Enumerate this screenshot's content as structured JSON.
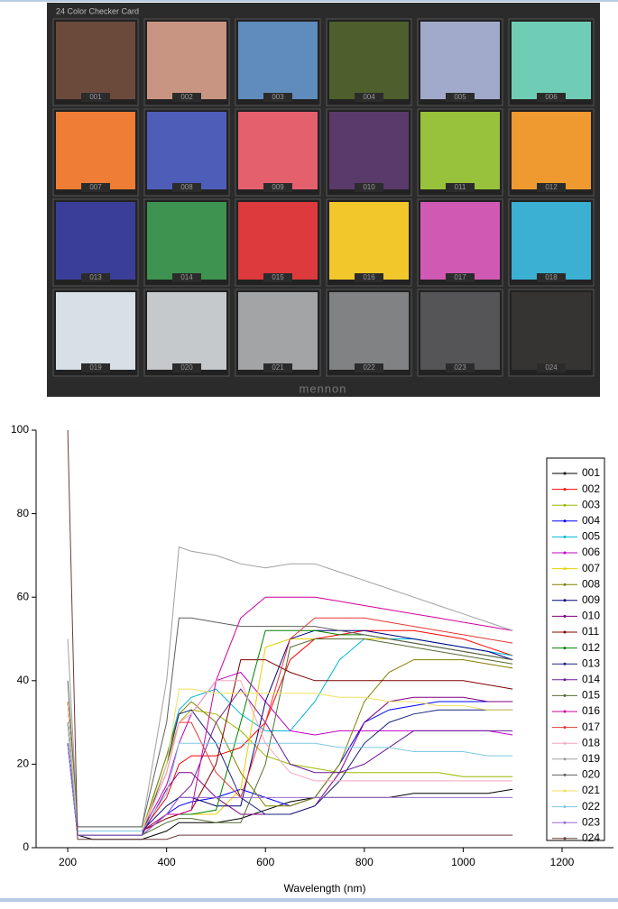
{
  "card": {
    "title": "24 Color Checker Card",
    "brand": "mennon",
    "patches": [
      {
        "label": "001",
        "color": "#6b4a3c"
      },
      {
        "label": "002",
        "color": "#c99583"
      },
      {
        "label": "003",
        "color": "#5f8bbd"
      },
      {
        "label": "004",
        "color": "#4e5e2c"
      },
      {
        "label": "005",
        "color": "#a2aacb"
      },
      {
        "label": "006",
        "color": "#6fcdb5"
      },
      {
        "label": "007",
        "color": "#ef7d35"
      },
      {
        "label": "008",
        "color": "#4e5eb8"
      },
      {
        "label": "009",
        "color": "#e4606c"
      },
      {
        "label": "010",
        "color": "#5a3a6a"
      },
      {
        "label": "011",
        "color": "#98c23c"
      },
      {
        "label": "012",
        "color": "#ef9a30"
      },
      {
        "label": "013",
        "color": "#3a3e98"
      },
      {
        "label": "014",
        "color": "#3e9350"
      },
      {
        "label": "015",
        "color": "#dc3a3c"
      },
      {
        "label": "016",
        "color": "#f1c72c"
      },
      {
        "label": "017",
        "color": "#d05ab3"
      },
      {
        "label": "018",
        "color": "#3bb0d2"
      },
      {
        "label": "019",
        "color": "#d8dfe6"
      },
      {
        "label": "020",
        "color": "#c6c9cc"
      },
      {
        "label": "021",
        "color": "#a3a4a6"
      },
      {
        "label": "022",
        "color": "#818284"
      },
      {
        "label": "023",
        "color": "#555557"
      },
      {
        "label": "024",
        "color": "#353432"
      }
    ]
  },
  "chart_data": {
    "type": "line",
    "x_label": "Wavelength (nm)",
    "x": [
      200,
      220,
      250,
      300,
      350,
      400,
      425,
      450,
      500,
      550,
      600,
      650,
      700,
      750,
      800,
      850,
      900,
      950,
      1000,
      1050,
      1100
    ],
    "xlim": [
      136,
      1304
    ],
    "xticks": [
      200,
      400,
      600,
      800,
      1000,
      1200
    ],
    "ylim": [
      0,
      100
    ],
    "yticks": [
      0,
      20,
      40,
      60,
      80,
      100
    ],
    "series": [
      {
        "name": "001",
        "color": "#000000",
        "values": [
          30,
          3,
          2,
          2,
          2,
          4,
          6,
          6,
          6,
          7,
          9,
          11,
          12,
          12,
          12,
          12,
          13,
          13,
          13,
          13,
          14
        ]
      },
      {
        "name": "002",
        "color": "#ff0000",
        "values": [
          35,
          4,
          4,
          4,
          4,
          12,
          20,
          22,
          22,
          24,
          30,
          45,
          50,
          51,
          52,
          52,
          52,
          51,
          50,
          48,
          46
        ]
      },
      {
        "name": "003",
        "color": "#9ab800",
        "values": [
          30,
          4,
          4,
          4,
          4,
          20,
          30,
          33,
          32,
          28,
          22,
          20,
          19,
          18,
          18,
          18,
          18,
          18,
          17,
          17,
          17
        ]
      },
      {
        "name": "004",
        "color": "#0000ff",
        "values": [
          25,
          3,
          3,
          3,
          3,
          8,
          10,
          11,
          12,
          14,
          12,
          10,
          12,
          20,
          30,
          33,
          34,
          35,
          35,
          35,
          35
        ]
      },
      {
        "name": "005",
        "color": "#00b4d8",
        "values": [
          30,
          4,
          4,
          4,
          4,
          22,
          33,
          36,
          38,
          32,
          28,
          28,
          35,
          45,
          50,
          50,
          50,
          49,
          48,
          47,
          46
        ]
      },
      {
        "name": "006",
        "color": "#c000c0",
        "values": [
          35,
          4,
          4,
          4,
          4,
          15,
          25,
          32,
          40,
          42,
          35,
          28,
          27,
          28,
          28,
          28,
          28,
          28,
          28,
          28,
          27
        ]
      },
      {
        "name": "007",
        "color": "#e8d000",
        "values": [
          30,
          4,
          4,
          4,
          4,
          8,
          8,
          8,
          8,
          14,
          48,
          50,
          50,
          50,
          50,
          50,
          49,
          48,
          47,
          46,
          45
        ]
      },
      {
        "name": "008",
        "color": "#808000",
        "values": [
          30,
          4,
          4,
          4,
          4,
          22,
          32,
          35,
          30,
          18,
          10,
          10,
          12,
          20,
          35,
          42,
          45,
          45,
          45,
          44,
          43
        ]
      },
      {
        "name": "009",
        "color": "#000080",
        "values": [
          35,
          4,
          4,
          4,
          4,
          10,
          12,
          12,
          10,
          10,
          35,
          50,
          52,
          52,
          52,
          51,
          50,
          49,
          48,
          47,
          45
        ]
      },
      {
        "name": "010",
        "color": "#800080",
        "values": [
          25,
          3,
          3,
          3,
          3,
          14,
          18,
          18,
          12,
          8,
          8,
          8,
          10,
          18,
          30,
          35,
          36,
          36,
          36,
          35,
          35
        ]
      },
      {
        "name": "011",
        "color": "#800000",
        "values": [
          30,
          4,
          4,
          4,
          4,
          7,
          8,
          9,
          20,
          45,
          45,
          42,
          40,
          40,
          40,
          40,
          40,
          40,
          40,
          39,
          38
        ]
      },
      {
        "name": "012",
        "color": "#008000",
        "values": [
          35,
          4,
          4,
          4,
          4,
          8,
          8,
          8,
          9,
          30,
          52,
          52,
          52,
          51,
          51,
          50,
          49,
          48,
          47,
          46,
          45
        ]
      },
      {
        "name": "013",
        "color": "#1a237e",
        "values": [
          25,
          3,
          3,
          3,
          3,
          20,
          32,
          33,
          25,
          12,
          8,
          8,
          10,
          16,
          25,
          30,
          32,
          33,
          33,
          33,
          33
        ]
      },
      {
        "name": "014",
        "color": "#6a1b9a",
        "values": [
          30,
          3,
          3,
          3,
          3,
          8,
          12,
          15,
          30,
          38,
          30,
          20,
          18,
          18,
          20,
          24,
          28,
          28,
          28,
          28,
          28
        ]
      },
      {
        "name": "015",
        "color": "#556b2f",
        "values": [
          30,
          3,
          3,
          3,
          3,
          6,
          7,
          7,
          6,
          6,
          20,
          48,
          50,
          50,
          50,
          49,
          48,
          47,
          46,
          45,
          44
        ]
      },
      {
        "name": "016",
        "color": "#d0009a",
        "values": [
          35,
          4,
          4,
          4,
          4,
          8,
          8,
          9,
          40,
          55,
          60,
          60,
          60,
          59,
          58,
          57,
          56,
          55,
          54,
          53,
          52
        ]
      },
      {
        "name": "017",
        "color": "#e53935",
        "values": [
          30,
          4,
          4,
          4,
          4,
          18,
          30,
          30,
          18,
          12,
          30,
          50,
          55,
          55,
          55,
          54,
          53,
          52,
          51,
          50,
          49
        ]
      },
      {
        "name": "018",
        "color": "#f4a6c0",
        "values": [
          30,
          4,
          4,
          4,
          4,
          18,
          30,
          32,
          40,
          40,
          25,
          18,
          16,
          16,
          16,
          16,
          16,
          16,
          16,
          16,
          16
        ]
      },
      {
        "name": "019",
        "color": "#a0a0a0",
        "values": [
          50,
          5,
          5,
          5,
          5,
          40,
          72,
          71,
          70,
          68,
          67,
          68,
          68,
          66,
          64,
          62,
          60,
          58,
          56,
          54,
          52
        ]
      },
      {
        "name": "020",
        "color": "#606060",
        "values": [
          40,
          5,
          5,
          5,
          5,
          30,
          55,
          55,
          54,
          53,
          53,
          53,
          53,
          52,
          51,
          50,
          49,
          48,
          47,
          46,
          45
        ]
      },
      {
        "name": "021",
        "color": "#f0e060",
        "values": [
          35,
          4,
          4,
          4,
          4,
          20,
          38,
          38,
          37,
          37,
          37,
          37,
          37,
          36,
          36,
          35,
          35,
          34,
          34,
          33,
          33
        ]
      },
      {
        "name": "022",
        "color": "#7ec8e3",
        "values": [
          30,
          4,
          4,
          4,
          4,
          13,
          25,
          25,
          25,
          25,
          25,
          25,
          25,
          24,
          24,
          24,
          23,
          23,
          23,
          22,
          22
        ]
      },
      {
        "name": "023",
        "color": "#9c6ad0",
        "values": [
          25,
          3,
          3,
          3,
          3,
          8,
          12,
          12,
          12,
          12,
          12,
          12,
          12,
          12,
          12,
          12,
          12,
          12,
          12,
          12,
          12
        ]
      },
      {
        "name": "024",
        "color": "#6d3b3b",
        "values": [
          100,
          2,
          2,
          2,
          2,
          2,
          3,
          3,
          3,
          3,
          3,
          3,
          3,
          3,
          3,
          3,
          3,
          3,
          3,
          3,
          3
        ]
      }
    ]
  }
}
